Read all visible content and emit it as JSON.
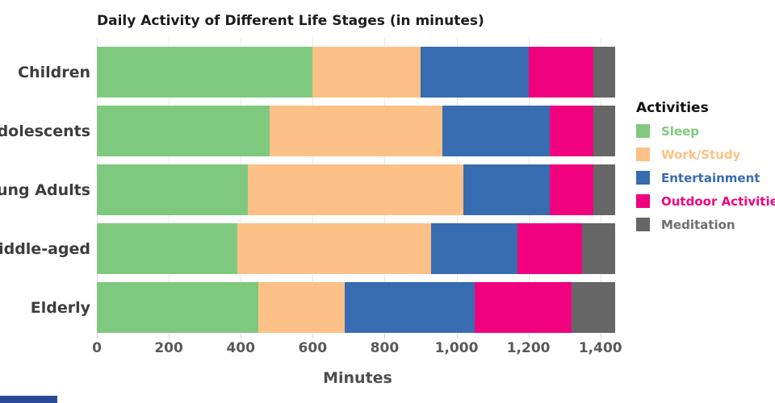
{
  "chart": {
    "title": "Daily Activity of Different Life Stages (in minutes)",
    "xlabel": "Minutes",
    "legend_title": "Activities"
  },
  "chart_data": {
    "type": "bar",
    "orientation": "horizontal",
    "stacked": true,
    "title": "Daily Activity of Different Life Stages (in minutes)",
    "xlabel": "Minutes",
    "ylabel": "",
    "categories": [
      "Children",
      "Adolescents",
      "Young Adults",
      "Middle-aged",
      "Elderly"
    ],
    "series": [
      {
        "name": "Sleep",
        "color": "#7fc97f",
        "values": [
          600,
          480,
          420,
          390,
          450
        ]
      },
      {
        "name": "Work/Study",
        "color": "#fdc086",
        "values": [
          300,
          480,
          600,
          540,
          240
        ]
      },
      {
        "name": "Entertainment",
        "color": "#386cb0",
        "values": [
          300,
          300,
          240,
          240,
          360
        ]
      },
      {
        "name": "Outdoor Activities",
        "color": "#f0027f",
        "values": [
          180,
          120,
          120,
          180,
          270
        ]
      },
      {
        "name": "Meditation",
        "color": "#666666",
        "values": [
          60,
          60,
          60,
          90,
          120
        ]
      }
    ],
    "row_totals": [
      1440,
      1440,
      1440,
      1440,
      1440
    ],
    "xlim": [
      0,
      1450
    ],
    "xticks": [
      0,
      200,
      400,
      600,
      800,
      1000,
      1200,
      1400
    ],
    "xtick_labels": [
      "0",
      "200",
      "400",
      "600",
      "800",
      "1,000",
      "1,200",
      "1,400"
    ],
    "grid": true,
    "legend_position": "right",
    "legend_title": "Activities",
    "legend_label_colors": [
      "#7fc97f",
      "#fdc086",
      "#386cb0",
      "#f0027f",
      "#6e6e6e"
    ]
  },
  "decorations": {
    "bottom_left_fragment_color": "#2d4a9a"
  }
}
